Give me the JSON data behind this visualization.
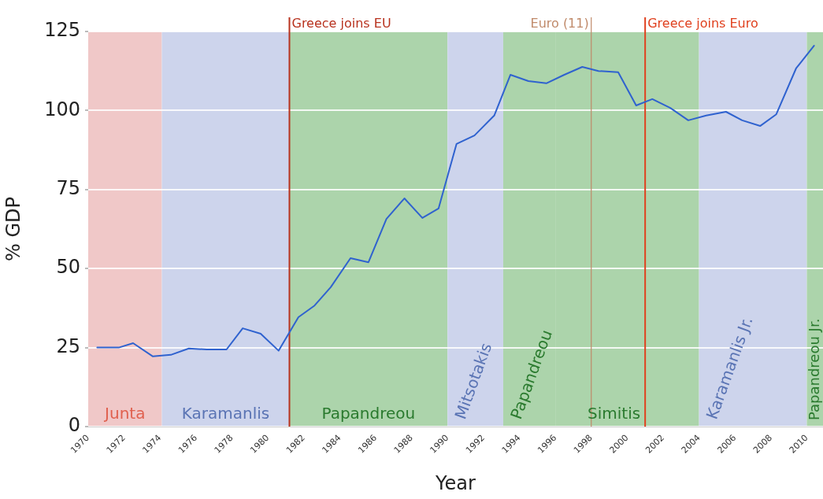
{
  "chart_data": {
    "type": "line",
    "xlabel": "Year",
    "ylabel": "% GDP",
    "xlim": [
      1970,
      2010.9
    ],
    "xticks": [
      1970,
      1972,
      1974,
      1976,
      1978,
      1980,
      1982,
      1984,
      1986,
      1988,
      1990,
      1992,
      1994,
      1996,
      1998,
      2000,
      2002,
      2004,
      2006,
      2008,
      2010
    ],
    "ylim": [
      0,
      125
    ],
    "yticks": [
      0,
      25,
      50,
      75,
      100,
      125
    ],
    "grid": "y",
    "legend": false,
    "marker": "none",
    "line_style": "solid",
    "x": [
      1970.5,
      1971.7,
      1972.5,
      1973.6,
      1974.6,
      1975.6,
      1976.6,
      1977.7,
      1978.6,
      1979.6,
      1980.6,
      1981.7,
      1982.6,
      1983.5,
      1984.6,
      1985.6,
      1986.6,
      1987.6,
      1988.6,
      1989.5,
      1990.5,
      1991.5,
      1992.6,
      1993.5,
      1994.5,
      1995.5,
      1996.5,
      1997.5,
      1998.4,
      1999.5,
      2000.5,
      2001.4,
      2002.4,
      2003.4,
      2004.4,
      2005.5,
      2006.4,
      2007.4,
      2008.3,
      2009.4,
      2010.4
    ],
    "series": [
      {
        "color": "#2f62cf",
        "values": [
          25.0,
          25.0,
          26.4,
          22.2,
          22.7,
          24.7,
          24.4,
          24.4,
          31.1,
          29.4,
          24.0,
          34.6,
          38.3,
          44.1,
          53.3,
          52.0,
          65.7,
          72.2,
          66.0,
          69.0,
          89.4,
          92.1,
          98.4,
          111.3,
          109.3,
          108.6,
          111.3,
          113.8,
          112.5,
          112.1,
          101.6,
          103.6,
          100.8,
          96.9,
          98.4,
          99.6,
          96.9,
          95.1,
          98.8,
          113.3,
          120.5
        ]
      }
    ],
    "bands": [
      {
        "axis": "x",
        "from": 1970,
        "to": 1974.1,
        "label": "Junta",
        "color": "#f0c8c8"
      },
      {
        "axis": "x",
        "from": 1974.1,
        "to": 1981.2,
        "label": "Karamanlis",
        "color": "#cdd4ec"
      },
      {
        "axis": "x",
        "from": 1981.2,
        "to": 1990,
        "label": "Papandreou",
        "color": "#acd4ab"
      },
      {
        "axis": "x",
        "from": 1990,
        "to": 1993.1,
        "label": "Mitsotakis",
        "color": "#cdd4ec"
      },
      {
        "axis": "x",
        "from": 1993.1,
        "to": 1996,
        "label": "Papandreou",
        "color": "#acd4ab"
      },
      {
        "axis": "x",
        "from": 1996,
        "to": 2004,
        "label": "Simitis",
        "color": "#acd4ab"
      },
      {
        "axis": "x",
        "from": 2004,
        "to": 2010,
        "label": "Karamanlis Jr.",
        "color": "#cdd4ec"
      },
      {
        "axis": "x",
        "from": 2010,
        "to": 2010.9,
        "label": "Papandreou Jr.",
        "color": "#acd4ab"
      }
    ],
    "ref_lines": [
      {
        "axis": "x",
        "value": 1981.2,
        "label": "Greece joins EU",
        "color": "#b8321e"
      },
      {
        "axis": "x",
        "value": 1998,
        "label": "Euro (11)",
        "color": "#c08a6a"
      },
      {
        "axis": "x",
        "value": 2001,
        "label": "Greece joins Euro",
        "color": "#e0401e"
      }
    ]
  }
}
